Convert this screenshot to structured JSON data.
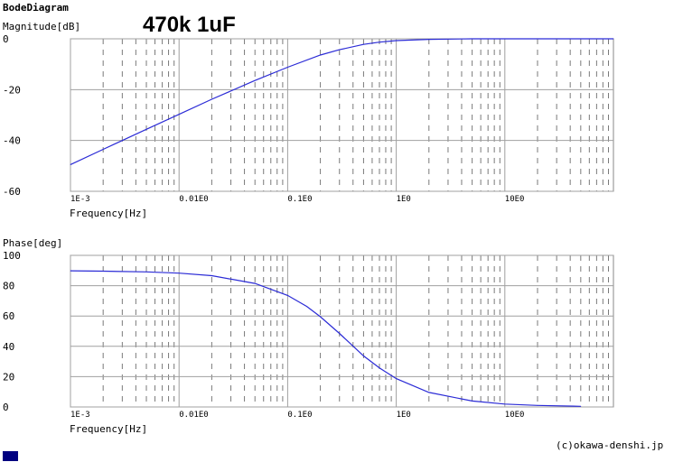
{
  "app_title": "BodeDiagram",
  "annotation": "470k 1uF",
  "footer": "(c)okawa-denshi.jp",
  "colors": {
    "curve": "#2b2bd6",
    "grid_major": "#a0a0a0",
    "grid_minor": "#7a7a7a",
    "frame": "#8a8a8a",
    "marker": "#000080"
  },
  "chart_data": [
    {
      "type": "line",
      "title": "",
      "ylabel": "Magnitude[dB]",
      "xlabel": "Frequency[Hz]",
      "xscale": "log",
      "xlim": [
        0.001,
        100
      ],
      "ylim": [
        -60,
        0
      ],
      "yticks": [
        0,
        -20,
        -40,
        -60
      ],
      "ytick_labels": [
        "0",
        "-20",
        "-40",
        "-60"
      ],
      "xticks": [
        0.001,
        0.01,
        0.1,
        1,
        10
      ],
      "xtick_labels": [
        "1E-3",
        "0.01E0",
        "0.1E0",
        "1E0",
        "10E0"
      ],
      "grid": true,
      "series": [
        {
          "x": [
            0.001,
            0.002,
            0.005,
            0.01,
            0.02,
            0.05,
            0.1,
            0.2,
            0.3,
            0.5,
            0.7,
            1,
            2,
            5,
            10,
            20,
            50,
            100
          ],
          "y": [
            -49.5,
            -43.5,
            -35.6,
            -29.7,
            -23.8,
            -16.4,
            -11.2,
            -6.4,
            -4.3,
            -2.2,
            -1.3,
            -0.7,
            -0.2,
            0,
            0,
            0,
            0,
            0
          ]
        }
      ]
    },
    {
      "type": "line",
      "title": "",
      "ylabel": "Phase[deg]",
      "xlabel": "Frequency[Hz]",
      "xscale": "log",
      "xlim": [
        0.001,
        100
      ],
      "ylim": [
        0,
        100
      ],
      "yticks": [
        100,
        80,
        60,
        40,
        20,
        0
      ],
      "ytick_labels": [
        "100",
        "80",
        "60",
        "40",
        "20",
        "0"
      ],
      "xticks": [
        0.001,
        0.01,
        0.1,
        1,
        10
      ],
      "xtick_labels": [
        "1E-3",
        "0.01E0",
        "0.1E0",
        "1E0",
        "10E0"
      ],
      "grid": true,
      "series": [
        {
          "x": [
            0.001,
            0.002,
            0.005,
            0.01,
            0.02,
            0.05,
            0.1,
            0.15,
            0.2,
            0.3,
            0.5,
            0.7,
            1,
            2,
            5,
            10,
            20,
            50
          ],
          "y": [
            89.8,
            89.6,
            89.1,
            88.3,
            86.6,
            81.5,
            73.6,
            66.3,
            59.5,
            48.5,
            33.7,
            25.8,
            18.7,
            9.6,
            3.9,
            1.9,
            1.0,
            0.4
          ]
        }
      ]
    }
  ]
}
